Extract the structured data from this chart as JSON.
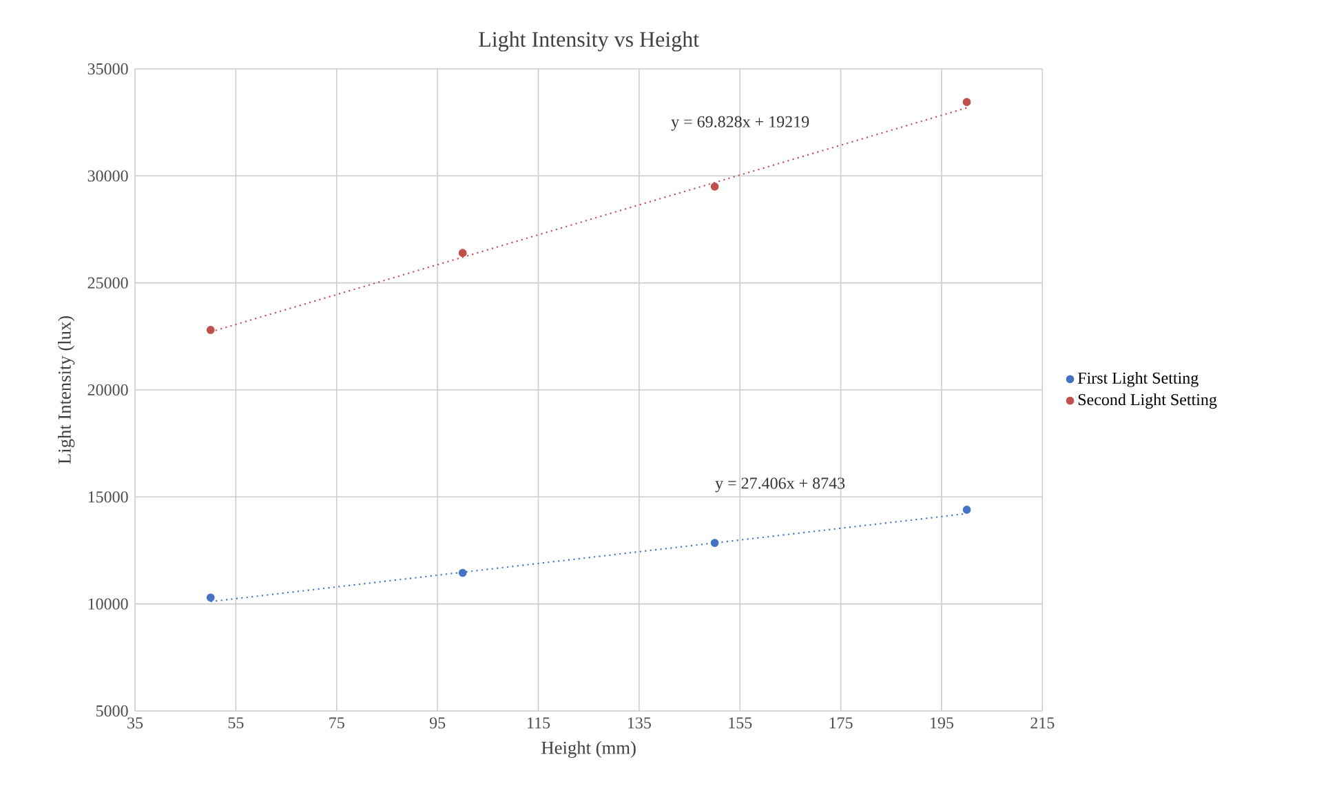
{
  "chart_data": {
    "type": "scatter",
    "title": "Light Intensity vs Height",
    "xlabel": "Height (mm)",
    "ylabel": "Light Intensity (lux)",
    "series": [
      {
        "name": "First Light Setting",
        "color": "#4472c4",
        "marker": "circle",
        "x": [
          50,
          100,
          150,
          200
        ],
        "values": [
          10300,
          11450,
          12850,
          14400
        ]
      },
      {
        "name": "Second Light Setting",
        "color": "#c0504d",
        "marker": "circle",
        "x": [
          50,
          100,
          150,
          200
        ],
        "values": [
          22800,
          26400,
          29500,
          33450
        ]
      },
      {
        "type": "line",
        "color": "#4472c4",
        "line_style": "dotted",
        "marker": "none",
        "x": [
          50,
          200
        ],
        "values": [
          10110,
          14220
        ]
      },
      {
        "type": "line",
        "color": "#c0504d",
        "line_style": "dotted",
        "marker": "none",
        "x": [
          50,
          200
        ],
        "values": [
          22710,
          33180
        ]
      }
    ],
    "annotations": [
      "y = 69.828x + 19219",
      "y = 27.406x + 8743"
    ],
    "xlim": [
      35,
      215
    ],
    "xticks": [
      35,
      55,
      75,
      95,
      115,
      135,
      155,
      175,
      195,
      215
    ],
    "ylim": [
      5000,
      35000
    ],
    "yticks": [
      5000,
      10000,
      15000,
      20000,
      25000,
      30000,
      35000
    ],
    "grid": true,
    "legend": "right"
  }
}
